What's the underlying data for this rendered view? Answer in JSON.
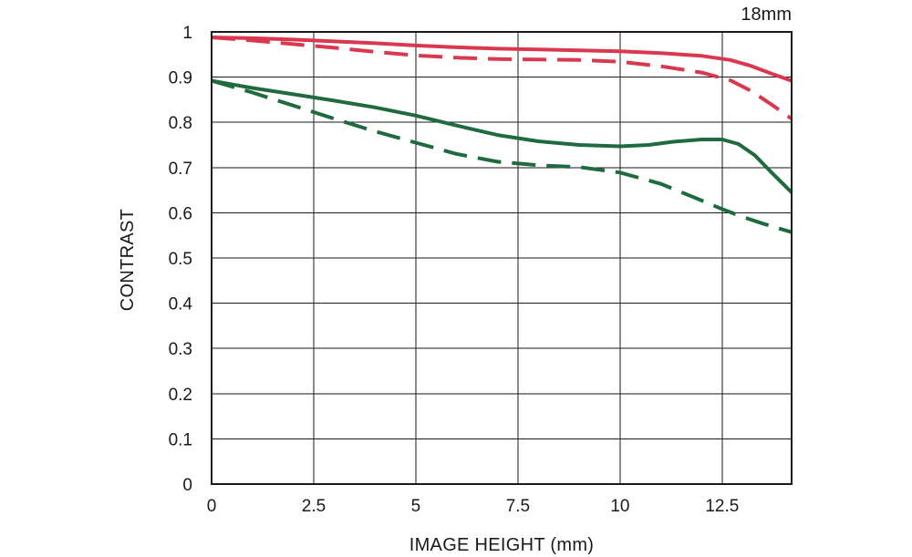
{
  "chart_data": {
    "type": "line",
    "title": "18mm",
    "xlabel": "IMAGE HEIGHT (mm)",
    "ylabel": "CONTRAST",
    "xlim": [
      0,
      14.2
    ],
    "ylim": [
      0,
      1
    ],
    "x_ticks": [
      0,
      2.5,
      5,
      7.5,
      10,
      12.5
    ],
    "x_tick_labels": [
      "0",
      "2.5",
      "5",
      "7.5",
      "10",
      "12.5"
    ],
    "y_ticks": [
      0,
      0.1,
      0.2,
      0.3,
      0.4,
      0.5,
      0.6,
      0.7,
      0.8,
      0.9,
      1
    ],
    "y_tick_labels": [
      "0",
      "0.1",
      "0.2",
      "0.3",
      "0.4",
      "0.5",
      "0.6",
      "0.7",
      "0.8",
      "0.9",
      "1"
    ],
    "grid": true,
    "series": [
      {
        "color": "#d9384e",
        "dash": "solid",
        "points": [
          [
            0,
            0.988
          ],
          [
            1,
            0.986
          ],
          [
            2,
            0.983
          ],
          [
            3,
            0.979
          ],
          [
            4,
            0.975
          ],
          [
            5,
            0.97
          ],
          [
            6,
            0.966
          ],
          [
            7,
            0.963
          ],
          [
            8,
            0.961
          ],
          [
            9,
            0.959
          ],
          [
            10,
            0.957
          ],
          [
            11,
            0.953
          ],
          [
            12,
            0.947
          ],
          [
            12.7,
            0.938
          ],
          [
            13.2,
            0.925
          ],
          [
            13.7,
            0.908
          ],
          [
            14.2,
            0.892
          ]
        ]
      },
      {
        "color": "#d9384e",
        "dash": "dashed",
        "points": [
          [
            0,
            0.988
          ],
          [
            1,
            0.981
          ],
          [
            2,
            0.973
          ],
          [
            3,
            0.965
          ],
          [
            4,
            0.956
          ],
          [
            5,
            0.948
          ],
          [
            6,
            0.943
          ],
          [
            7,
            0.94
          ],
          [
            8,
            0.939
          ],
          [
            9,
            0.938
          ],
          [
            10,
            0.934
          ],
          [
            11,
            0.924
          ],
          [
            12,
            0.91
          ],
          [
            12.7,
            0.893
          ],
          [
            13.2,
            0.87
          ],
          [
            13.7,
            0.84
          ],
          [
            14.2,
            0.808
          ]
        ]
      },
      {
        "color": "#1f6b3f",
        "dash": "solid",
        "points": [
          [
            0,
            0.892
          ],
          [
            1,
            0.876
          ],
          [
            2,
            0.862
          ],
          [
            3,
            0.848
          ],
          [
            4,
            0.833
          ],
          [
            5,
            0.815
          ],
          [
            6,
            0.793
          ],
          [
            7,
            0.772
          ],
          [
            8,
            0.758
          ],
          [
            9,
            0.75
          ],
          [
            10,
            0.747
          ],
          [
            10.7,
            0.75
          ],
          [
            11.3,
            0.757
          ],
          [
            12,
            0.762
          ],
          [
            12.5,
            0.762
          ],
          [
            12.9,
            0.752
          ],
          [
            13.3,
            0.727
          ],
          [
            13.7,
            0.69
          ],
          [
            14.2,
            0.645
          ]
        ]
      },
      {
        "color": "#1f6b3f",
        "dash": "dashed",
        "points": [
          [
            0,
            0.892
          ],
          [
            1,
            0.866
          ],
          [
            2,
            0.837
          ],
          [
            3,
            0.808
          ],
          [
            4,
            0.78
          ],
          [
            5,
            0.755
          ],
          [
            6,
            0.73
          ],
          [
            7,
            0.713
          ],
          [
            8,
            0.705
          ],
          [
            9,
            0.701
          ],
          [
            10,
            0.689
          ],
          [
            11,
            0.664
          ],
          [
            12,
            0.627
          ],
          [
            12.5,
            0.608
          ],
          [
            13,
            0.591
          ],
          [
            13.5,
            0.576
          ],
          [
            14.2,
            0.557
          ]
        ]
      }
    ]
  }
}
